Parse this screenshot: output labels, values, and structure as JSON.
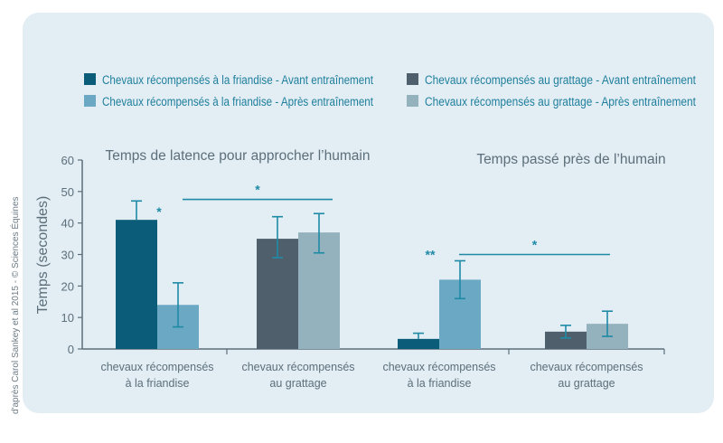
{
  "chart_data": {
    "type": "bar",
    "legend": {
      "placement": "top",
      "entries": [
        {
          "label": "Chevaux récompensés à la friandise - Avant entraînement",
          "color": "#0b5c78"
        },
        {
          "label": "Chevaux récompensés à la friandise - Après entraînement",
          "color": "#6aa8c4"
        },
        {
          "label": "Chevaux récompensés au grattage - Avant entraînement",
          "color": "#4f606c"
        },
        {
          "label": "Chevaux récompensés au grattage - Après entraînement",
          "color": "#94b2bd"
        }
      ]
    },
    "ylabel": "Temps (secondes)",
    "ylim": [
      0,
      60
    ],
    "yticks": [
      "0",
      "10",
      "20",
      "30",
      "40",
      "50",
      "60"
    ],
    "grid": false,
    "panels": [
      {
        "title": "Temps de latence pour approcher l’humain",
        "groups": [
          {
            "label": [
              "chevaux récompensés",
              "à la friandise"
            ],
            "bars": [
              {
                "value": 41,
                "err_low": 41,
                "err_high": 47,
                "color": "#0b5c78"
              },
              {
                "value": 14,
                "err_low": 7,
                "err_high": 21,
                "color": "#6aa8c4"
              }
            ],
            "marker": "*"
          },
          {
            "label": [
              "chevaux récompensés",
              "au grattage"
            ],
            "bars": [
              {
                "value": 35,
                "err_low": 29,
                "err_high": 42,
                "color": "#4f606c"
              },
              {
                "value": 37,
                "err_low": 30.5,
                "err_high": 43,
                "color": "#94b2bd"
              }
            ],
            "marker": ""
          }
        ],
        "bracket": {
          "marker": "*",
          "level": 47.5
        }
      },
      {
        "title": "Temps passé près de l’humain",
        "groups": [
          {
            "label": [
              "chevaux récompensés",
              "à la friandise"
            ],
            "bars": [
              {
                "value": 3.2,
                "err_low": 3.2,
                "err_high": 5,
                "color": "#0b5c78"
              },
              {
                "value": 22,
                "err_low": 16,
                "err_high": 28,
                "color": "#6aa8c4"
              }
            ],
            "marker": "**"
          },
          {
            "label": [
              "chevaux récompensés",
              "au grattage"
            ],
            "bars": [
              {
                "value": 5.5,
                "err_low": 3.5,
                "err_high": 7.5,
                "color": "#4f606c"
              },
              {
                "value": 8,
                "err_low": 4,
                "err_high": 12,
                "color": "#94b2bd"
              }
            ],
            "marker": ""
          }
        ],
        "bracket": {
          "marker": "*",
          "level": 30
        }
      }
    ]
  },
  "credit": "d'après Carol Sankey et al 2015 - © Sciences Équines",
  "colors": {
    "text": "#1f7f9c",
    "panel_bg": "#e2edf4",
    "axis": "#5d6f7a",
    "error": "#1f8aa6"
  }
}
